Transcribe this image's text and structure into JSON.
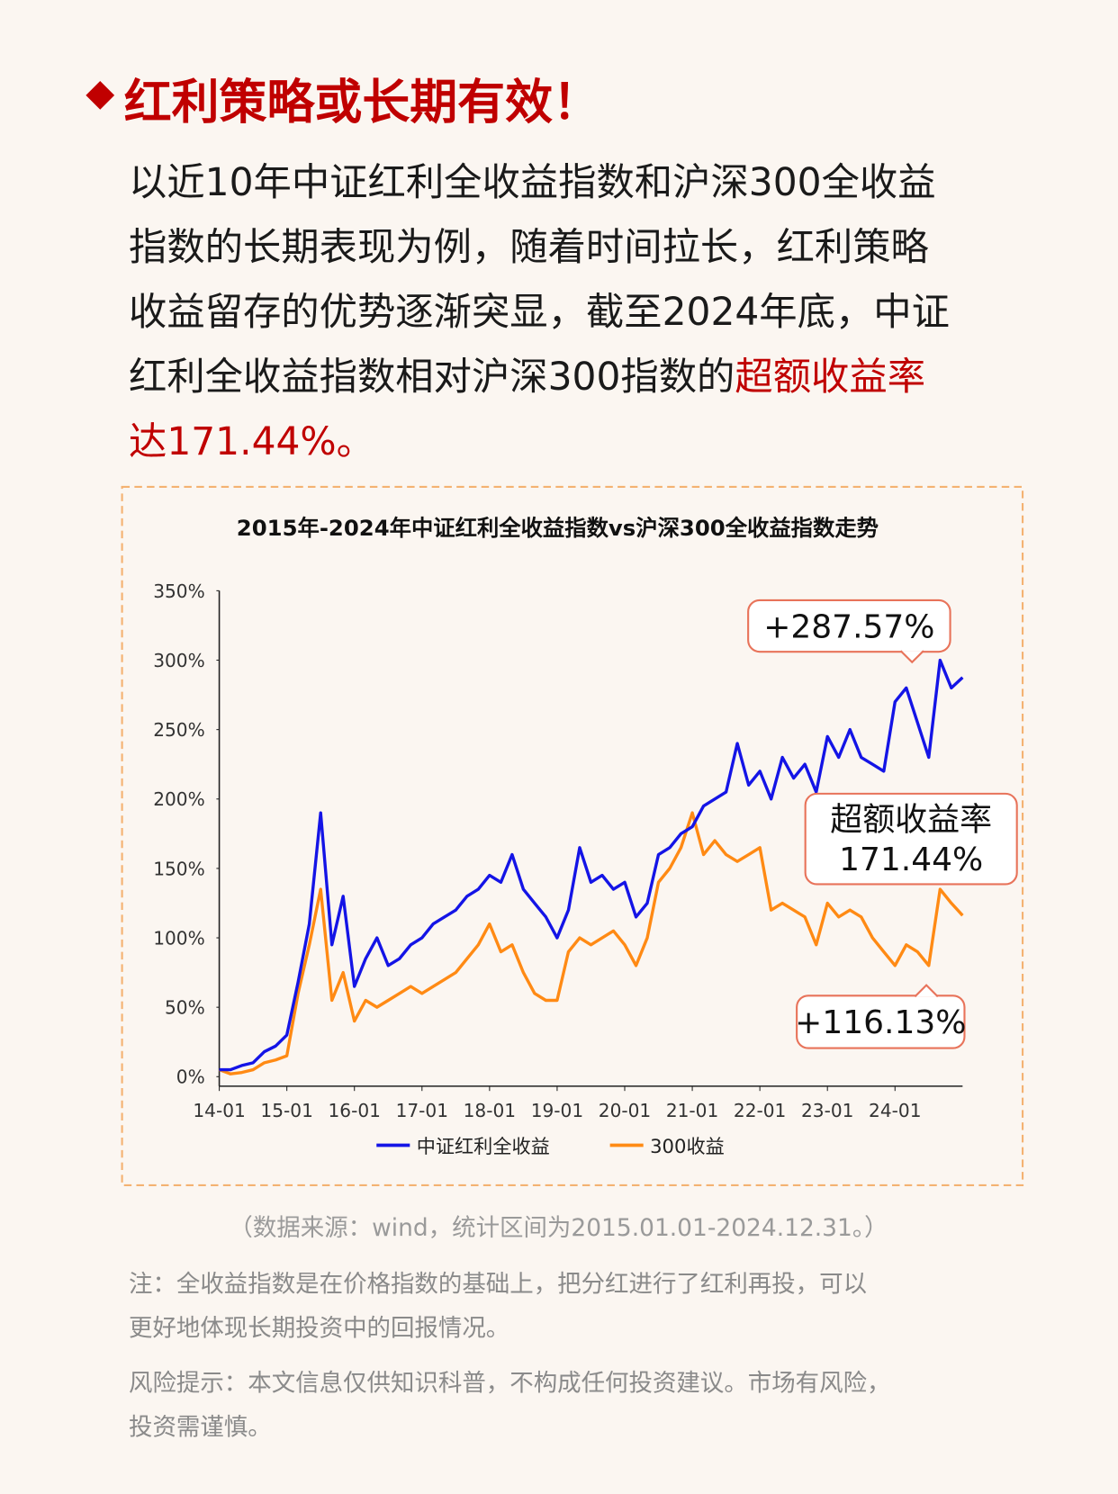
{
  "heading": "红利策略或长期有效！",
  "intro": [
    [
      "以近10年中证红利全收益指数和沪深300全收益"
    ],
    [
      "指数的长期表现为例，随着时间拉长，红利策略"
    ],
    [
      "收益留存的优势逐渐突显，截至2024年底，中证"
    ],
    [
      "红利全收益指数相对沪深300指数的",
      "超额收益率"
    ],
    [
      "达171.44%。"
    ]
  ],
  "chart_data": {
    "type": "line",
    "title": "2015年-2024年中证红利全收益指数vs沪深300全收益指数走势",
    "x": [
      "14-01",
      "14-03",
      "14-05",
      "14-07",
      "14-09",
      "14-11",
      "15-01",
      "15-03",
      "15-05",
      "15-07",
      "15-09",
      "15-11",
      "16-01",
      "16-03",
      "16-05",
      "16-07",
      "16-09",
      "16-11",
      "17-01",
      "17-03",
      "17-05",
      "17-07",
      "17-09",
      "17-11",
      "18-01",
      "18-03",
      "18-05",
      "18-07",
      "18-09",
      "18-11",
      "19-01",
      "19-03",
      "19-05",
      "19-07",
      "19-09",
      "19-11",
      "20-01",
      "20-03",
      "20-05",
      "20-07",
      "20-09",
      "20-11",
      "21-01",
      "21-03",
      "21-05",
      "21-07",
      "21-09",
      "21-11",
      "22-01",
      "22-03",
      "22-05",
      "22-07",
      "22-09",
      "22-11",
      "23-01",
      "23-03",
      "23-05",
      "23-07",
      "23-09",
      "23-11",
      "24-01",
      "24-03",
      "24-05",
      "24-07",
      "24-09",
      "24-11",
      "25-01"
    ],
    "series": [
      {
        "name": "中证红利全收益",
        "color": "#1414e6",
        "values": [
          5,
          5,
          8,
          10,
          18,
          22,
          30,
          68,
          110,
          190,
          95,
          130,
          65,
          85,
          100,
          80,
          85,
          95,
          100,
          110,
          115,
          120,
          130,
          135,
          145,
          140,
          160,
          135,
          125,
          115,
          100,
          120,
          165,
          140,
          145,
          135,
          140,
          115,
          125,
          160,
          165,
          175,
          180,
          195,
          200,
          205,
          240,
          210,
          220,
          200,
          230,
          215,
          225,
          205,
          245,
          230,
          250,
          230,
          225,
          220,
          270,
          280,
          255,
          230,
          300,
          280,
          287.57
        ]
      },
      {
        "name": "300收益",
        "color": "#ff8a14",
        "values": [
          5,
          2,
          3,
          5,
          10,
          12,
          15,
          60,
          95,
          135,
          55,
          75,
          40,
          55,
          50,
          55,
          60,
          65,
          60,
          65,
          70,
          75,
          85,
          95,
          110,
          90,
          95,
          75,
          60,
          55,
          55,
          90,
          100,
          95,
          100,
          105,
          95,
          80,
          100,
          140,
          150,
          165,
          190,
          160,
          170,
          160,
          155,
          160,
          165,
          120,
          125,
          120,
          115,
          95,
          125,
          115,
          120,
          115,
          100,
          90,
          80,
          95,
          90,
          80,
          135,
          125,
          116.13
        ]
      }
    ],
    "ylim": [
      0,
      350
    ],
    "yticks": [
      {
        "value": 0,
        "label": "0%"
      },
      {
        "value": 50,
        "label": "50%"
      },
      {
        "value": 100,
        "label": "100%"
      },
      {
        "value": 150,
        "label": "150%"
      },
      {
        "value": 200,
        "label": "200%"
      },
      {
        "value": 250,
        "label": "250%"
      },
      {
        "value": 300,
        "label": "300%"
      },
      {
        "value": 350,
        "label": "350%"
      }
    ],
    "xticks": [
      "14-01",
      "15-01",
      "16-01",
      "17-01",
      "18-01",
      "19-01",
      "20-01",
      "21-01",
      "22-01",
      "23-01",
      "24-01"
    ],
    "legend": "bottom",
    "annotations": [
      {
        "lines": [
          "+287.57%"
        ]
      },
      {
        "lines": [
          "超额收益率",
          "171.44%"
        ]
      },
      {
        "lines": [
          "+116.13%"
        ]
      }
    ]
  },
  "source": "（数据来源：wind，统计区间为2015.01.01-2024.12.31。）",
  "note": [
    "注：全收益指数是在价格指数的基础上，把分红进行了红利再投，可以",
    "更好地体现长期投资中的回报情况。"
  ],
  "risk": [
    "风险提示：本文信息仅供知识科普，不构成任何投资建议。市场有风险，",
    "投资需谨慎。"
  ]
}
